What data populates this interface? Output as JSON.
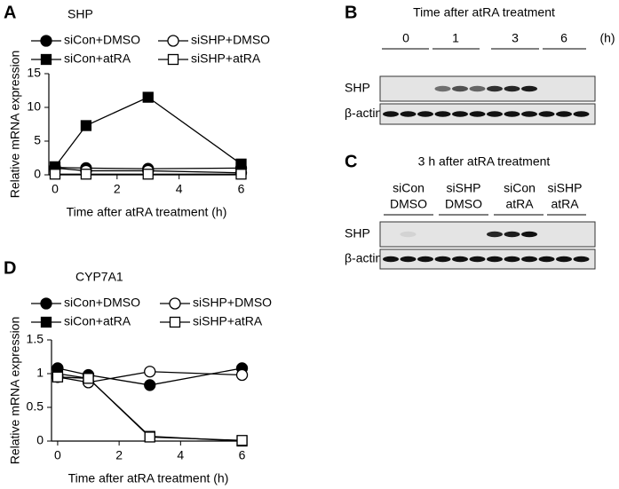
{
  "chart_data": [
    {
      "type": "line",
      "panel": "A",
      "title": "SHP",
      "x_label": "Time after atRA treatment (h)",
      "y_label": "Relative mRNA expression",
      "x": [
        0,
        1,
        3,
        6
      ],
      "xlim": [
        -0.2,
        6.1
      ],
      "xticks": [
        0,
        2,
        4,
        6
      ],
      "ylim": [
        0,
        15
      ],
      "yticks": [
        0,
        5,
        10,
        15
      ],
      "series": [
        {
          "name": "siCon+DMSO",
          "color": "#000000",
          "marker": "circle",
          "filled": true,
          "values": [
            1.1,
            1.0,
            0.9,
            1.0
          ]
        },
        {
          "name": "siSHP+DMSO",
          "color": "#000000",
          "marker": "circle",
          "filled": false,
          "values": [
            1.0,
            0.6,
            0.6,
            0.3
          ]
        },
        {
          "name": "siCon+atRA",
          "color": "#000000",
          "marker": "square",
          "filled": true,
          "values": [
            1.2,
            7.3,
            11.5,
            1.6
          ]
        },
        {
          "name": "siSHP+atRA",
          "color": "#000000",
          "marker": "square",
          "filled": false,
          "values": [
            0.1,
            0.1,
            0.1,
            0.1
          ]
        }
      ]
    },
    {
      "type": "line",
      "panel": "D",
      "title": "CYP7A1",
      "x_label": "Time after atRA treatment (h)",
      "y_label": "Relative mRNA expression",
      "x": [
        0,
        1,
        3,
        6
      ],
      "xlim": [
        -0.2,
        6.1
      ],
      "xticks": [
        0,
        2,
        4,
        6
      ],
      "ylim": [
        0,
        1.5
      ],
      "yticks": [
        0,
        0.5,
        1,
        1.5
      ],
      "series": [
        {
          "name": "siCon+DMSO",
          "color": "#000000",
          "marker": "circle",
          "filled": true,
          "values": [
            1.08,
            0.98,
            0.83,
            1.08
          ]
        },
        {
          "name": "siSHP+DMSO",
          "color": "#000000",
          "marker": "circle",
          "filled": false,
          "values": [
            0.95,
            0.87,
            1.03,
            0.98
          ]
        },
        {
          "name": "siCon+atRA",
          "color": "#000000",
          "marker": "square",
          "filled": true,
          "values": [
            1.0,
            0.93,
            0.07,
            0.0
          ]
        },
        {
          "name": "siSHP+atRA",
          "color": "#000000",
          "marker": "square",
          "filled": false,
          "values": [
            0.95,
            0.93,
            0.06,
            0.01
          ]
        }
      ]
    }
  ],
  "blots": [
    {
      "panel": "B",
      "title": "Time after atRA treatment",
      "groups": [
        [
          "0"
        ],
        [
          "1"
        ],
        [
          "3"
        ],
        [
          "6"
        ]
      ],
      "unit": "(h)",
      "rows": [
        "SHP",
        "β-actin"
      ]
    },
    {
      "panel": "C",
      "title": "3 h after atRA treatment",
      "groups": [
        [
          "siCon",
          "DMSO"
        ],
        [
          "siSHP",
          "DMSO"
        ],
        [
          "siCon",
          "atRA"
        ],
        [
          "siSHP",
          "atRA"
        ]
      ],
      "rows": [
        "SHP",
        "β-actin"
      ]
    }
  ]
}
